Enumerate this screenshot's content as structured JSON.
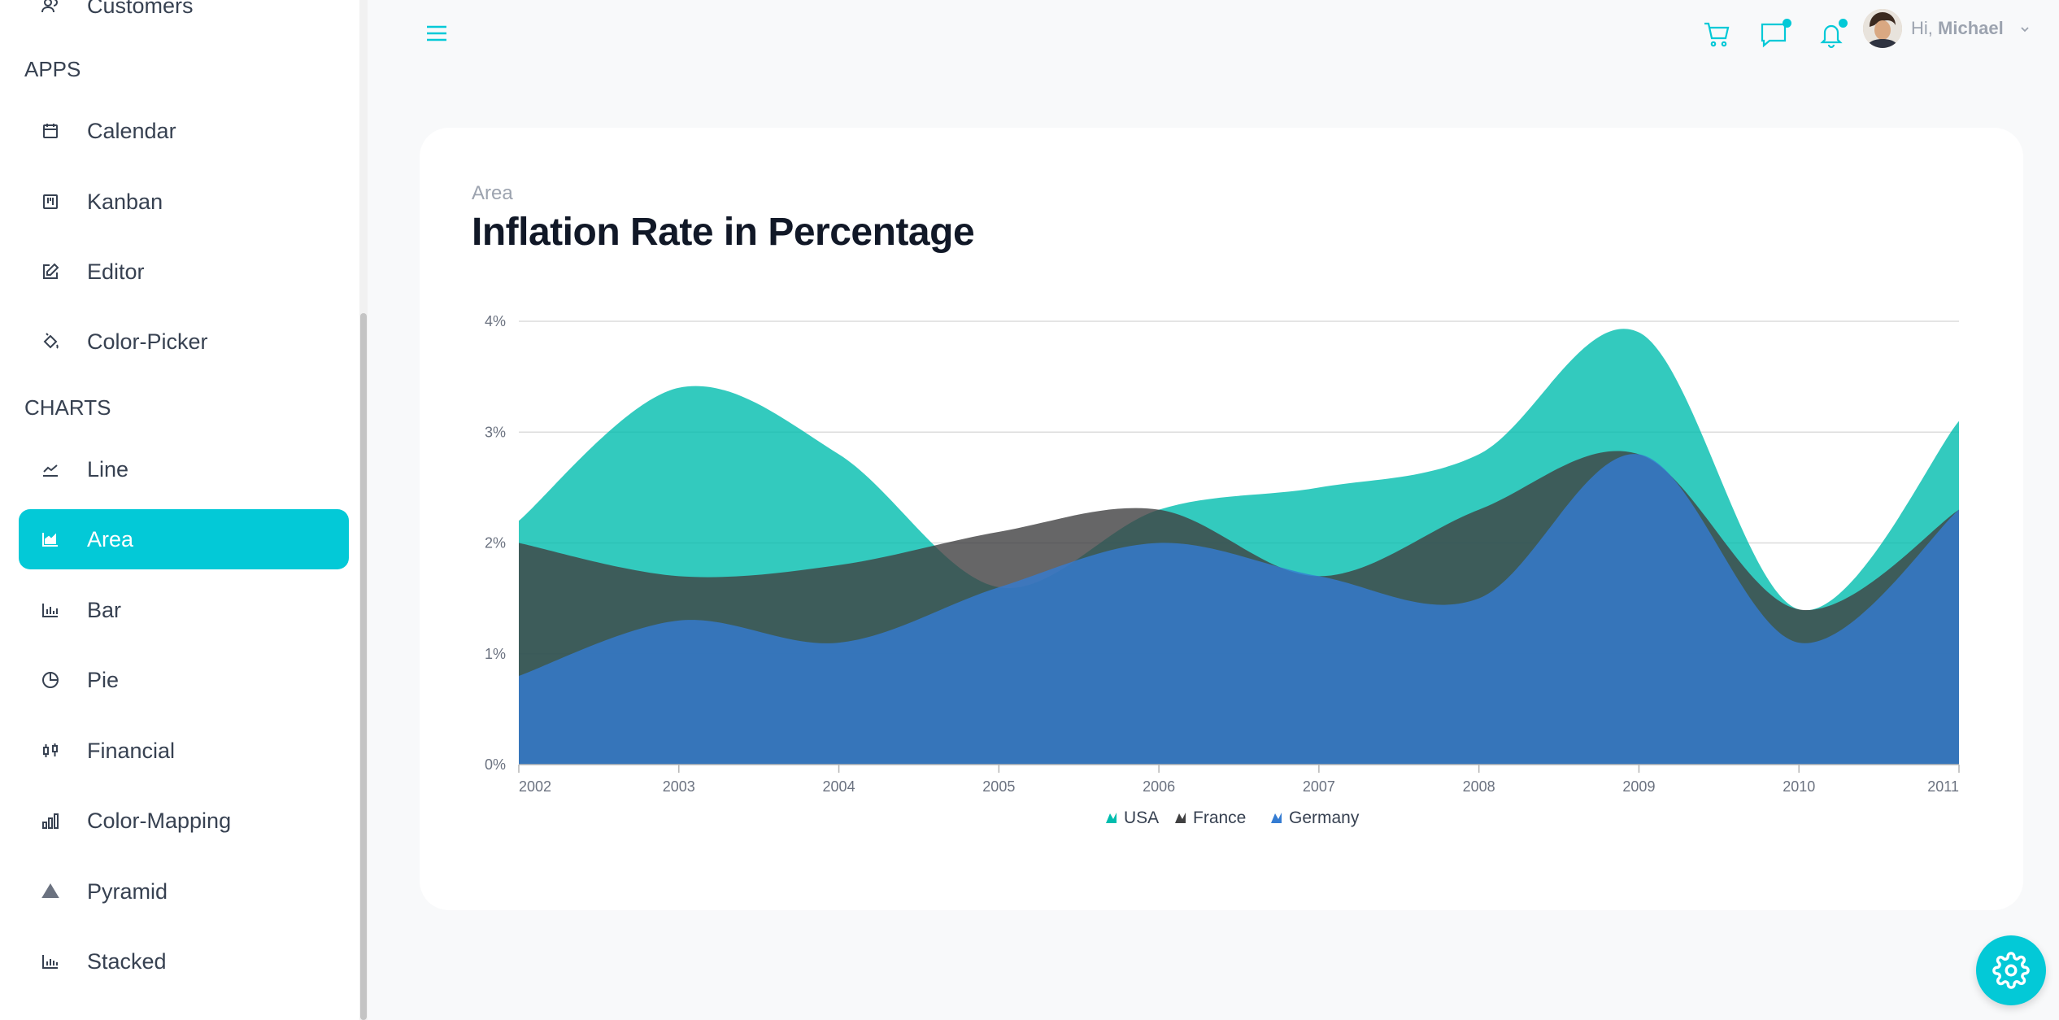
{
  "sidebar": {
    "top_item": "Customers",
    "sections": {
      "apps": "APPS",
      "charts": "CHARTS"
    },
    "apps_items": [
      {
        "label": "Calendar",
        "icon": "calendar-icon"
      },
      {
        "label": "Kanban",
        "icon": "kanban-icon"
      },
      {
        "label": "Editor",
        "icon": "edit-icon"
      },
      {
        "label": "Color-Picker",
        "icon": "paint-bucket-icon"
      }
    ],
    "chart_items": [
      {
        "label": "Line",
        "icon": "line-chart-icon"
      },
      {
        "label": "Area",
        "icon": "area-chart-icon",
        "active": true
      },
      {
        "label": "Bar",
        "icon": "bar-chart-icon"
      },
      {
        "label": "Pie",
        "icon": "pie-chart-icon"
      },
      {
        "label": "Financial",
        "icon": "candlestick-icon"
      },
      {
        "label": "Color-Mapping",
        "icon": "bar-levels-icon"
      },
      {
        "label": "Pyramid",
        "icon": "pyramid-icon"
      },
      {
        "label": "Stacked",
        "icon": "stacked-chart-icon"
      }
    ]
  },
  "header": {
    "greeting": "Hi,",
    "user_name": "Michael",
    "icons": [
      "menu-icon",
      "cart-icon",
      "chat-icon",
      "bell-icon"
    ]
  },
  "card": {
    "subtitle": "Area",
    "title": "Inflation Rate in Percentage"
  },
  "colors": {
    "accent": "#03c9d7",
    "usa": "#00bdae",
    "france": "#404041",
    "germany": "#357cd2"
  },
  "chart_data": {
    "type": "area",
    "title": "Inflation Rate in Percentage",
    "x": [
      "2002",
      "2003",
      "2004",
      "2005",
      "2006",
      "2007",
      "2008",
      "2009",
      "2010",
      "2011"
    ],
    "y_ticks": [
      "0%",
      "1%",
      "2%",
      "3%",
      "4%"
    ],
    "ylim": [
      0,
      4
    ],
    "legend_position": "bottom",
    "series": [
      {
        "name": "USA",
        "color": "#00bdae",
        "values": [
          2.2,
          3.4,
          2.8,
          1.6,
          2.3,
          2.5,
          2.8,
          3.9,
          1.4,
          3.1
        ]
      },
      {
        "name": "France",
        "color": "#404041",
        "values": [
          2.0,
          1.7,
          1.8,
          2.1,
          2.3,
          1.7,
          2.3,
          2.8,
          1.4,
          2.3
        ]
      },
      {
        "name": "Germany",
        "color": "#357cd2",
        "values": [
          0.8,
          1.3,
          1.1,
          1.6,
          2.0,
          1.7,
          1.5,
          2.8,
          1.1,
          2.3
        ]
      }
    ]
  }
}
